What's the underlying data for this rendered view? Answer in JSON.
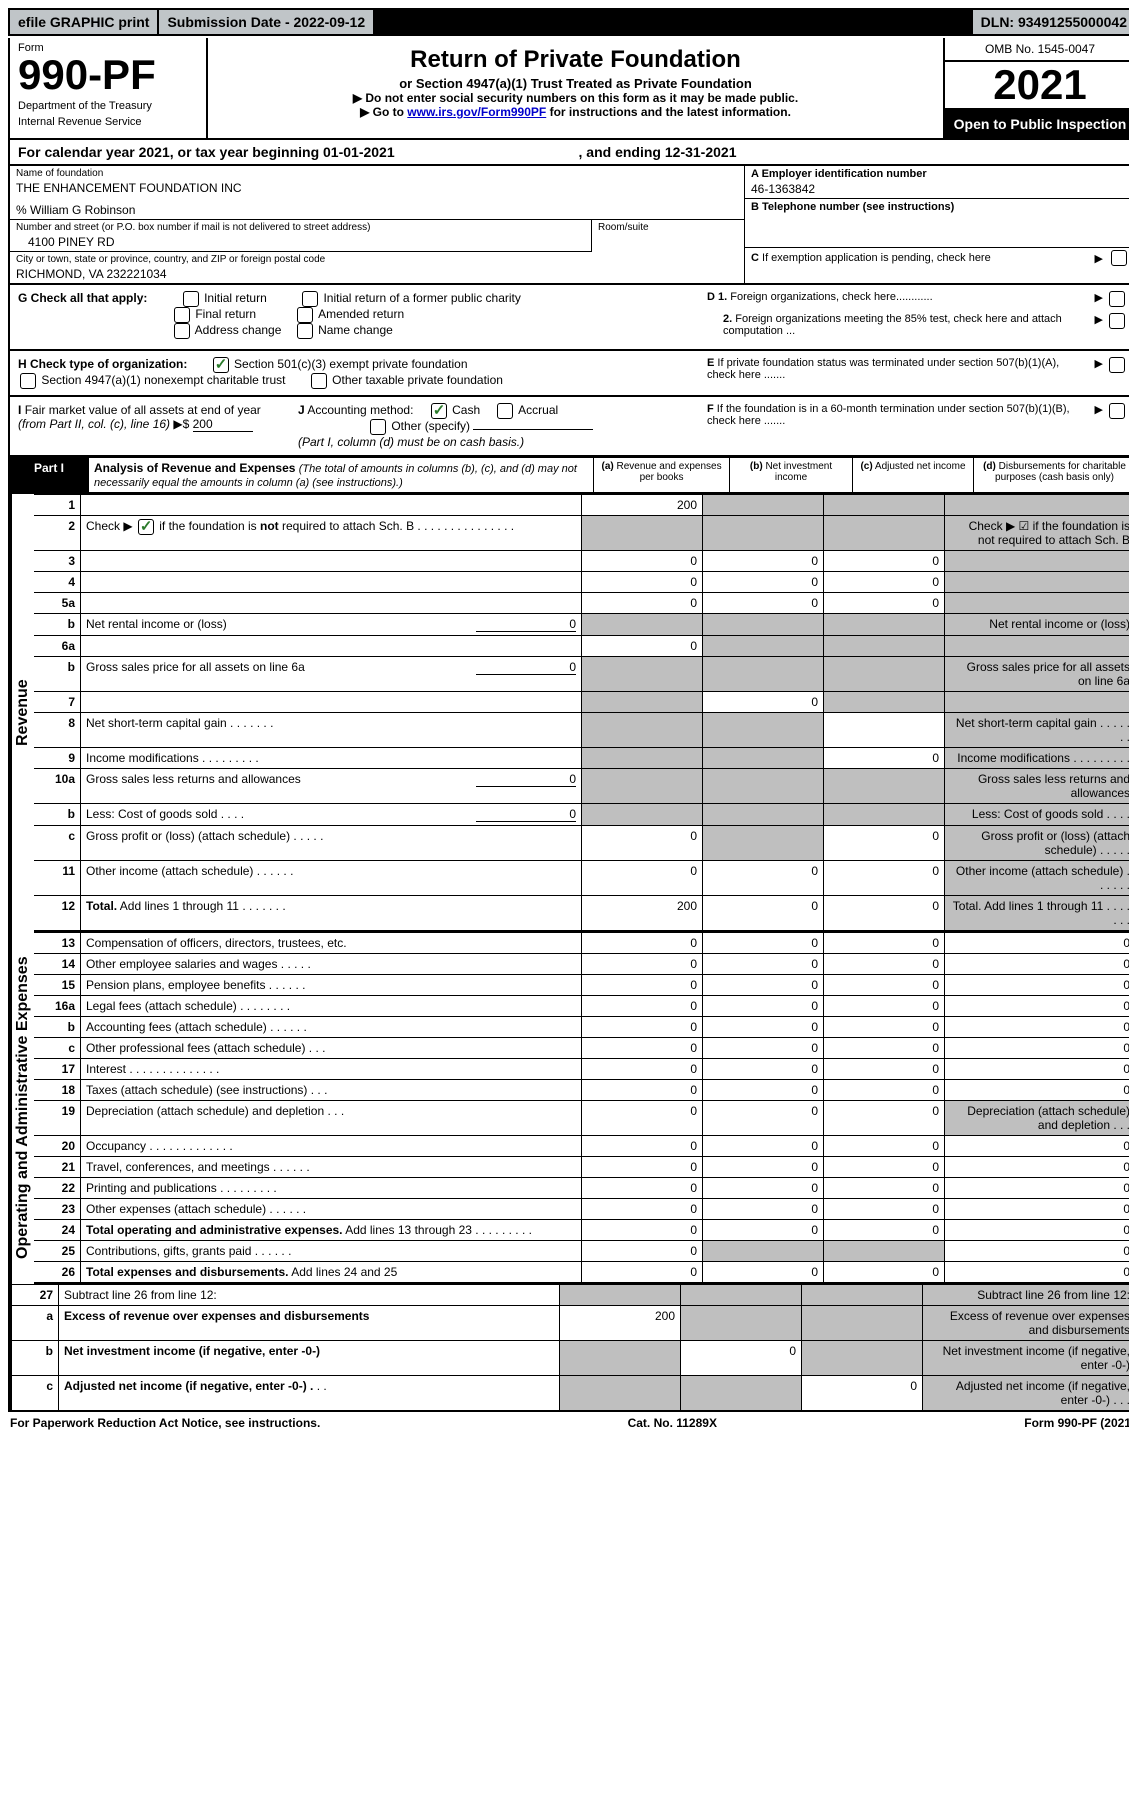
{
  "top_bar": {
    "efile": "efile GRAPHIC print",
    "submission": "Submission Date - 2022-09-12",
    "dln": "DLN: 93491255000042"
  },
  "header": {
    "form_label": "Form",
    "form_number": "990-PF",
    "dept": "Department of the Treasury",
    "irs": "Internal Revenue Service",
    "title": "Return of Private Foundation",
    "subtitle": "or Section 4947(a)(1) Trust Treated as Private Foundation",
    "note1": "▶ Do not enter social security numbers on this form as it may be made public.",
    "note2_pre": "▶ Go to ",
    "note2_link": "www.irs.gov/Form990PF",
    "note2_post": " for instructions and the latest information.",
    "omb": "OMB No. 1545-0047",
    "year": "2021",
    "open": "Open to Public Inspection"
  },
  "cal_year": {
    "text_pre": "For calendar year 2021, or tax year beginning ",
    "begin": "01-01-2021",
    "text_mid": " , and ending ",
    "end": "12-31-2021"
  },
  "info": {
    "name_label": "Name of foundation",
    "name": "THE ENHANCEMENT FOUNDATION INC",
    "care_of": "% William G Robinson",
    "addr_label": "Number and street (or P.O. box number if mail is not delivered to street address)",
    "addr": "4100 PINEY RD",
    "room_label": "Room/suite",
    "city_label": "City or town, state or province, country, and ZIP or foreign postal code",
    "city": "RICHMOND, VA  232221034",
    "a_label": "A Employer identification number",
    "a_val": "46-1363842",
    "b_label": "B Telephone number (see instructions)",
    "c_label": "C If exemption application is pending, check here",
    "d1": "D 1. Foreign organizations, check here............",
    "d2": "2. Foreign organizations meeting the 85% test, check here and attach computation ...",
    "e": "E  If private foundation status was terminated under section 507(b)(1)(A), check here .......",
    "f": "F  If the foundation is in a 60-month termination under section 507(b)(1)(B), check here .......",
    "g_label": "G Check all that apply:",
    "g_opts": [
      "Initial return",
      "Initial return of a former public charity",
      "Final return",
      "Amended return",
      "Address change",
      "Name change"
    ],
    "h_label": "H Check type of organization:",
    "h_opts": [
      "Section 501(c)(3) exempt private foundation",
      "Section 4947(a)(1) nonexempt charitable trust",
      "Other taxable private foundation"
    ],
    "i_label": "I Fair market value of all assets at end of year (from Part II, col. (c), line 16)",
    "i_val": "200",
    "j_label": "J Accounting method:",
    "j_opts": [
      "Cash",
      "Accrual"
    ],
    "j_other": "Other (specify)",
    "j_note": "(Part I, column (d) must be on cash basis.)"
  },
  "part1": {
    "label": "Part I",
    "title": "Analysis of Revenue and Expenses",
    "title_note": "(The total of amounts in columns (b), (c), and (d) may not necessarily equal the amounts in column (a) (see instructions).)",
    "cols": {
      "a": "(a) Revenue and expenses per books",
      "b": "(b) Net investment income",
      "c": "(c) Adjusted net income",
      "d": "(d) Disbursements for charitable purposes (cash basis only)"
    }
  },
  "sections": {
    "revenue": "Revenue",
    "expenses": "Operating and Administrative Expenses"
  },
  "rows": [
    {
      "n": "1",
      "d": "",
      "a": "200",
      "b": "",
      "c": "",
      "shade": [
        "b",
        "c",
        "d"
      ]
    },
    {
      "n": "2",
      "d": "Check ▶ ☑ if the foundation is not required to attach Sch. B",
      "shade": [
        "a",
        "b",
        "c",
        "d"
      ],
      "dots": true,
      "bold_not": true
    },
    {
      "n": "3",
      "d": "",
      "a": "0",
      "b": "0",
      "c": "0",
      "shade": [
        "d"
      ]
    },
    {
      "n": "4",
      "d": "",
      "a": "0",
      "b": "0",
      "c": "0",
      "shade": [
        "d"
      ]
    },
    {
      "n": "5a",
      "d": "",
      "a": "0",
      "b": "0",
      "c": "0",
      "shade": [
        "d"
      ]
    },
    {
      "n": "b",
      "d": "Net rental income or (loss) ",
      "inline_val": "0",
      "shade": [
        "a",
        "b",
        "c",
        "d"
      ]
    },
    {
      "n": "6a",
      "d": "",
      "a": "0",
      "b": "",
      "c": "",
      "shade": [
        "b",
        "c",
        "d"
      ]
    },
    {
      "n": "b",
      "d": "Gross sales price for all assets on line 6a ",
      "inline_val": "0",
      "shade": [
        "a",
        "b",
        "c",
        "d"
      ]
    },
    {
      "n": "7",
      "d": "",
      "a": "",
      "b": "0",
      "c": "",
      "shade": [
        "a",
        "c",
        "d"
      ]
    },
    {
      "n": "8",
      "d": "Net short-term capital gain   .   .   .   .   .   .   .",
      "shade": [
        "a",
        "b",
        "d"
      ]
    },
    {
      "n": "9",
      "d": "Income modifications   .   .   .   .   .   .   .   .   .",
      "c": "0",
      "shade": [
        "a",
        "b",
        "d"
      ]
    },
    {
      "n": "10a",
      "d": "Gross sales less returns and allowances",
      "inline_val": "0",
      "shade": [
        "a",
        "b",
        "c",
        "d"
      ]
    },
    {
      "n": "b",
      "d": "Less: Cost of goods sold   .   .   .   .",
      "inline_val": "0",
      "shade": [
        "a",
        "b",
        "c",
        "d"
      ]
    },
    {
      "n": "c",
      "d": "Gross profit or (loss) (attach schedule)   .   .   .   .   .",
      "a": "0",
      "c": "0",
      "shade": [
        "b",
        "d"
      ]
    },
    {
      "n": "11",
      "d": "Other income (attach schedule)   .   .   .   .   .   .",
      "a": "0",
      "b": "0",
      "c": "0",
      "shade": [
        "d"
      ]
    },
    {
      "n": "12",
      "d": "Total. Add lines 1 through 11   .   .   .   .   .   .   .",
      "a": "200",
      "b": "0",
      "c": "0",
      "shade": [
        "d"
      ],
      "bold": true
    }
  ],
  "exp_rows": [
    {
      "n": "13",
      "d": "Compensation of officers, directors, trustees, etc.",
      "a": "0",
      "b": "0",
      "c": "0",
      "dd": "0"
    },
    {
      "n": "14",
      "d": "Other employee salaries and wages   .   .   .   .   .",
      "a": "0",
      "b": "0",
      "c": "0",
      "dd": "0"
    },
    {
      "n": "15",
      "d": "Pension plans, employee benefits   .   .   .   .   .   .",
      "a": "0",
      "b": "0",
      "c": "0",
      "dd": "0"
    },
    {
      "n": "16a",
      "d": "Legal fees (attach schedule)   .   .   .   .   .   .   .   .",
      "a": "0",
      "b": "0",
      "c": "0",
      "dd": "0"
    },
    {
      "n": "b",
      "d": "Accounting fees (attach schedule)   .   .   .   .   .   .",
      "a": "0",
      "b": "0",
      "c": "0",
      "dd": "0"
    },
    {
      "n": "c",
      "d": "Other professional fees (attach schedule)   .   .   .",
      "a": "0",
      "b": "0",
      "c": "0",
      "dd": "0"
    },
    {
      "n": "17",
      "d": "Interest   .   .   .   .   .   .   .   .   .   .   .   .   .   .",
      "a": "0",
      "b": "0",
      "c": "0",
      "dd": "0"
    },
    {
      "n": "18",
      "d": "Taxes (attach schedule) (see instructions)   .   .   .",
      "a": "0",
      "b": "0",
      "c": "0",
      "dd": "0"
    },
    {
      "n": "19",
      "d": "Depreciation (attach schedule) and depletion   .   .   .",
      "a": "0",
      "b": "0",
      "c": "0",
      "shade": [
        "d"
      ]
    },
    {
      "n": "20",
      "d": "Occupancy   .   .   .   .   .   .   .   .   .   .   .   .   .",
      "a": "0",
      "b": "0",
      "c": "0",
      "dd": "0"
    },
    {
      "n": "21",
      "d": "Travel, conferences, and meetings   .   .   .   .   .   .",
      "a": "0",
      "b": "0",
      "c": "0",
      "dd": "0"
    },
    {
      "n": "22",
      "d": "Printing and publications   .   .   .   .   .   .   .   .   .",
      "a": "0",
      "b": "0",
      "c": "0",
      "dd": "0"
    },
    {
      "n": "23",
      "d": "Other expenses (attach schedule)   .   .   .   .   .   .",
      "a": "0",
      "b": "0",
      "c": "0",
      "dd": "0"
    },
    {
      "n": "24",
      "d": "Total operating and administrative expenses. Add lines 13 through 23   .   .   .   .   .   .   .   .   .",
      "a": "0",
      "b": "0",
      "c": "0",
      "dd": "0",
      "bold": true
    },
    {
      "n": "25",
      "d": "Contributions, gifts, grants paid   .   .   .   .   .   .",
      "a": "0",
      "dd": "0",
      "shade": [
        "b",
        "c"
      ]
    },
    {
      "n": "26",
      "d": "Total expenses and disbursements. Add lines 24 and 25",
      "a": "0",
      "b": "0",
      "c": "0",
      "dd": "0",
      "bold": true
    }
  ],
  "final_rows": [
    {
      "n": "27",
      "d": "Subtract line 26 from line 12:",
      "shade": [
        "a",
        "b",
        "c",
        "d"
      ]
    },
    {
      "n": "a",
      "d": "Excess of revenue over expenses and disbursements",
      "a": "200",
      "shade": [
        "b",
        "c",
        "d"
      ],
      "bold": true
    },
    {
      "n": "b",
      "d": "Net investment income (if negative, enter -0-)",
      "b": "0",
      "shade": [
        "a",
        "c",
        "d"
      ],
      "bold": true
    },
    {
      "n": "c",
      "d": "Adjusted net income (if negative, enter -0-)   .   .   .",
      "c": "0",
      "shade": [
        "a",
        "b",
        "d"
      ],
      "bold": true
    }
  ],
  "footer": {
    "left": "For Paperwork Reduction Act Notice, see instructions.",
    "mid": "Cat. No. 11289X",
    "right": "Form 990-PF (2021)"
  },
  "colors": {
    "shade": "#bfbfbf",
    "header_gray": "#c0c5c8",
    "link": "#0000cc",
    "check_green": "#2a7a2a"
  }
}
